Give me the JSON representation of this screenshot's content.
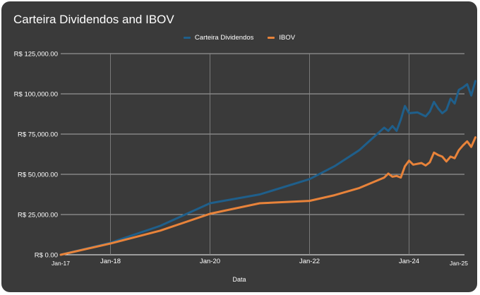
{
  "chart_data": {
    "type": "line",
    "title": "Carteira Dividendos and IBOV",
    "xlabel": "Data",
    "ylabel": "",
    "x_ticks": [
      "Jan-17",
      "Jan-18",
      "Jan-20",
      "Jan-22",
      "Jan-24",
      "Jan-25"
    ],
    "y_ticks": [
      "R$ 0.00",
      "R$ 25,000.00",
      "R$ 50,000.00",
      "R$ 75,000.00",
      "R$ 100,000.00",
      "R$ 125,000.00"
    ],
    "ylim": [
      0,
      125000
    ],
    "xlim": [
      "2017-01",
      "2025-01"
    ],
    "legend_position": "top-center",
    "grid": true,
    "series": [
      {
        "name": "Carteira Dividendos",
        "color": "#1f5f8b",
        "points": [
          [
            "2017-01",
            0
          ],
          [
            "2018-01",
            7500
          ],
          [
            "2019-01",
            18000
          ],
          [
            "2020-01",
            32000
          ],
          [
            "2021-01",
            37500
          ],
          [
            "2022-01",
            47000
          ],
          [
            "2022-07",
            55000
          ],
          [
            "2023-01",
            65000
          ],
          [
            "2023-07",
            79000
          ],
          [
            "2023-08",
            77000
          ],
          [
            "2023-09",
            80000
          ],
          [
            "2023-10",
            77000
          ],
          [
            "2023-11",
            84000
          ],
          [
            "2023-12",
            92500
          ],
          [
            "2024-01",
            88000
          ],
          [
            "2024-03",
            88500
          ],
          [
            "2024-05",
            86000
          ],
          [
            "2024-06",
            89000
          ],
          [
            "2024-07",
            95000
          ],
          [
            "2024-08",
            91000
          ],
          [
            "2024-09",
            88000
          ],
          [
            "2024-10",
            90000
          ],
          [
            "2024-11",
            97000
          ],
          [
            "2024-12",
            94000
          ],
          [
            "2025-01",
            102500
          ],
          [
            "2025-02",
            104000
          ],
          [
            "2025-03",
            106000
          ],
          [
            "2025-04",
            99000
          ],
          [
            "2025-05",
            108000
          ]
        ]
      },
      {
        "name": "IBOV",
        "color": "#e8833a",
        "points": [
          [
            "2017-01",
            0
          ],
          [
            "2018-01",
            7000
          ],
          [
            "2019-01",
            15000
          ],
          [
            "2020-01",
            25500
          ],
          [
            "2021-01",
            32000
          ],
          [
            "2022-01",
            33500
          ],
          [
            "2022-07",
            37000
          ],
          [
            "2023-01",
            41500
          ],
          [
            "2023-07",
            48000
          ],
          [
            "2023-08",
            50500
          ],
          [
            "2023-09",
            48500
          ],
          [
            "2023-10",
            49000
          ],
          [
            "2023-11",
            48000
          ],
          [
            "2023-12",
            55000
          ],
          [
            "2024-01",
            58500
          ],
          [
            "2024-02",
            56000
          ],
          [
            "2024-04",
            57000
          ],
          [
            "2024-05",
            55500
          ],
          [
            "2024-06",
            57500
          ],
          [
            "2024-07",
            63500
          ],
          [
            "2024-08",
            62000
          ],
          [
            "2024-09",
            61000
          ],
          [
            "2024-10",
            58000
          ],
          [
            "2024-11",
            61000
          ],
          [
            "2024-12",
            60000
          ],
          [
            "2025-01",
            65000
          ],
          [
            "2025-02",
            68000
          ],
          [
            "2025-03",
            70500
          ],
          [
            "2025-04",
            67000
          ],
          [
            "2025-05",
            73000
          ]
        ]
      }
    ]
  }
}
